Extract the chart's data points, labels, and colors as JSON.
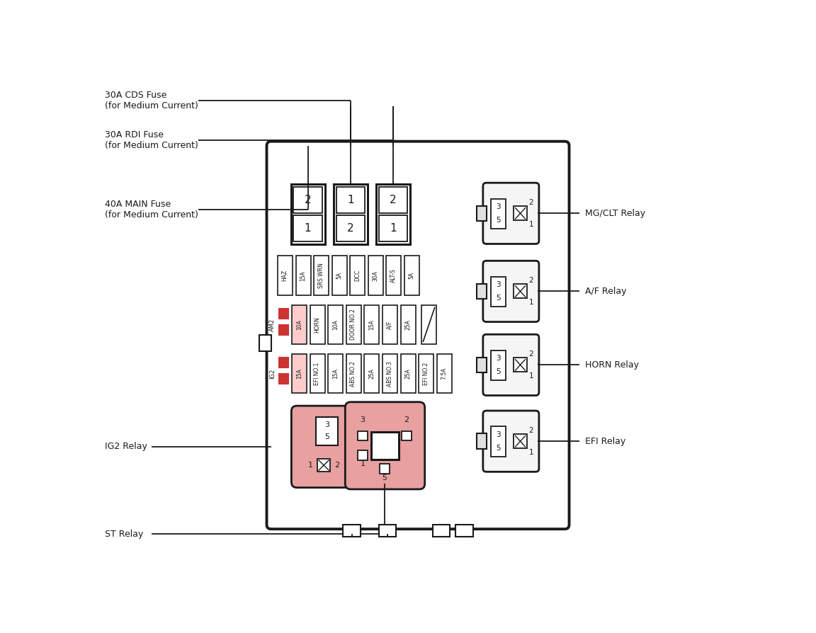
{
  "bg_color": "#ffffff",
  "line_color": "#1a1a1a",
  "red_fill": "#e8a0a0",
  "fuse_row1": [
    "HAZ",
    "15A",
    "SRS WRN",
    "5A",
    "DCC",
    "30A",
    "ALT-S",
    "5A"
  ],
  "fuse_row2": [
    "10A",
    "HORN",
    "10A",
    "DOOR NO.2",
    "15A",
    "A/F",
    "25A"
  ],
  "fuse_row3": [
    "15A",
    "EFI NO.1",
    "15A",
    "ABS NO.2",
    "25A",
    "ABS NO.3",
    "25A",
    "EFI NO.2",
    "7.5A"
  ]
}
